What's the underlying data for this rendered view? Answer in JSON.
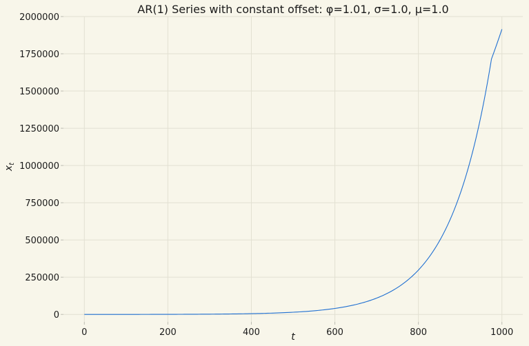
{
  "chart_data": {
    "type": "line",
    "title": "AR(1) Series with constant offset: φ=1.01, σ=1.0, μ=1.0",
    "xlabel": "t",
    "ylabel_base": "x",
    "ylabel_sub": "t",
    "xlim": [
      -50,
      1050
    ],
    "ylim": [
      -50000,
      2000000
    ],
    "x_ticks": [
      0,
      200,
      400,
      600,
      800,
      1000
    ],
    "x_tick_labels": [
      "0",
      "200",
      "400",
      "600",
      "800",
      "1000"
    ],
    "y_ticks": [
      0,
      250000,
      500000,
      750000,
      1000000,
      1250000,
      1500000,
      1750000,
      2000000
    ],
    "y_tick_labels": [
      "0",
      "250000",
      "500000",
      "750000",
      "1000000",
      "1250000",
      "1500000",
      "1750000",
      "2000000"
    ],
    "grid": true,
    "color": "#1f6fd1",
    "series": [
      {
        "x": [
          0,
          50,
          100,
          150,
          200,
          250,
          300,
          350,
          400,
          450,
          500,
          550,
          600,
          650,
          700,
          750,
          800,
          850,
          900,
          925,
          950,
          975,
          1000
        ],
        "y": [
          0,
          64,
          170,
          346,
          636,
          1115,
          1905,
          3207,
          5353,
          8892,
          14729,
          24352,
          40218,
          66377,
          109506,
          180614,
          297850,
          491141,
          809828,
          1040000,
          1335000,
          1715000,
          1915000
        ]
      }
    ]
  }
}
